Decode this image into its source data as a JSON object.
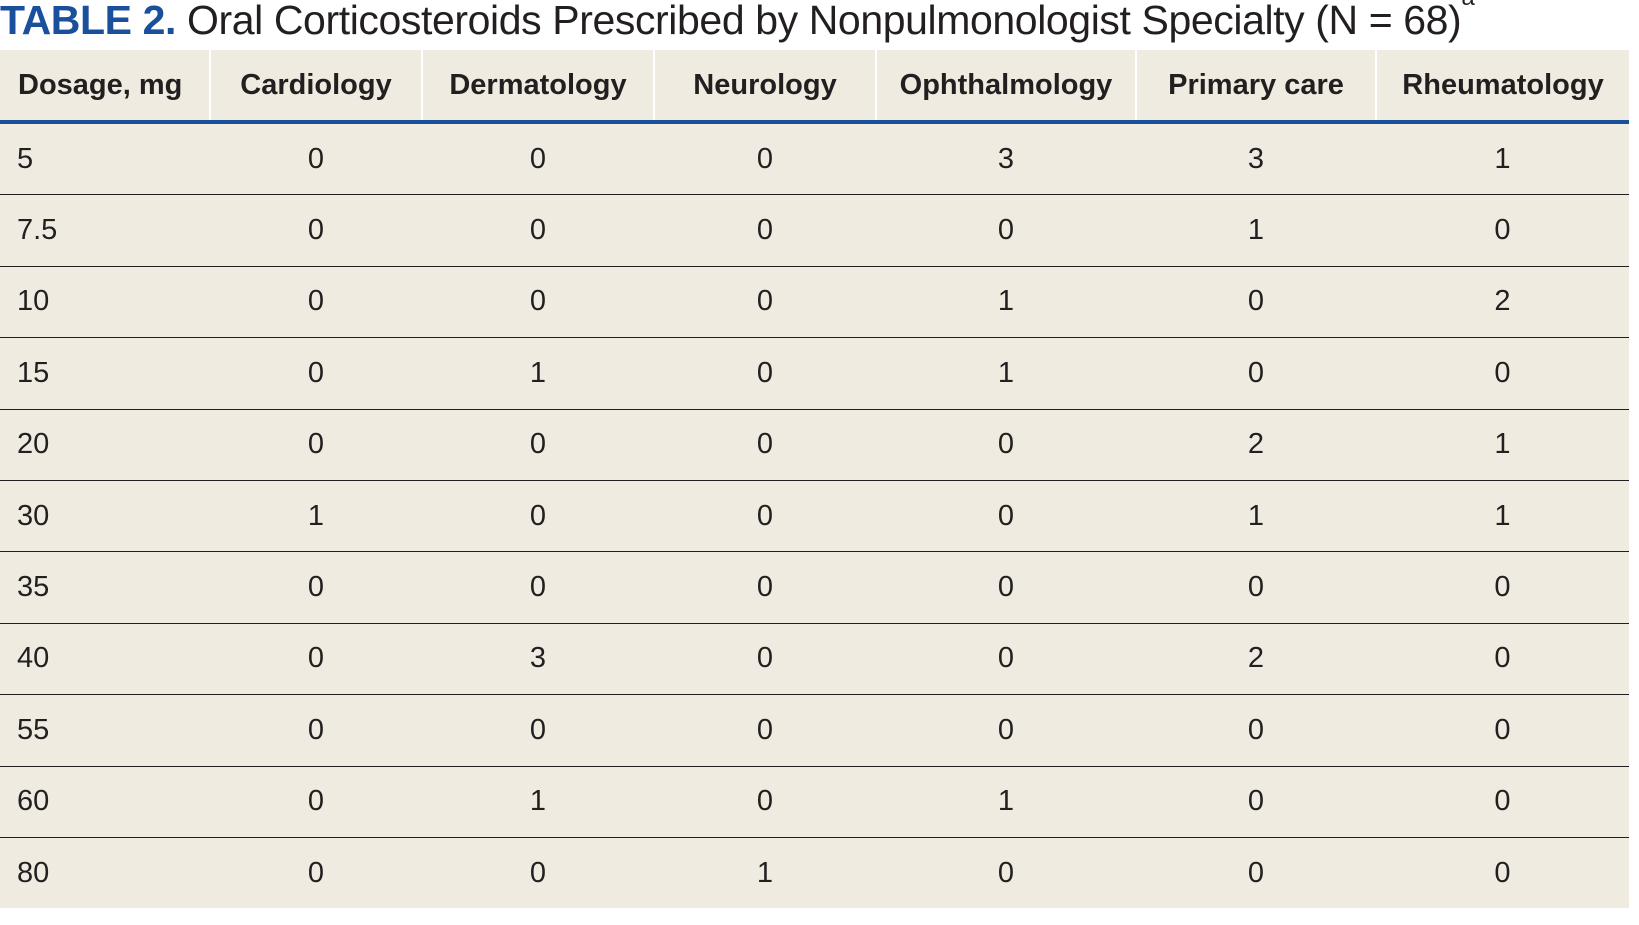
{
  "title": {
    "label": "TABLE 2.",
    "text": " Oral Corticosteroids Prescribed by Nonpulmonologist Specialty (N = 68)",
    "footnote_marker": "a"
  },
  "table": {
    "headers": [
      "Dosage, mg",
      "Cardiology",
      "Dermatology",
      "Neurology",
      "Ophthalmology",
      "Primary care",
      "Rheumatology"
    ],
    "rows": [
      [
        "5",
        "0",
        "0",
        "0",
        "3",
        "3",
        "1"
      ],
      [
        "7.5",
        "0",
        "0",
        "0",
        "0",
        "1",
        "0"
      ],
      [
        "10",
        "0",
        "0",
        "0",
        "1",
        "0",
        "2"
      ],
      [
        "15",
        "0",
        "1",
        "0",
        "1",
        "0",
        "0"
      ],
      [
        "20",
        "0",
        "0",
        "0",
        "0",
        "2",
        "1"
      ],
      [
        "30",
        "1",
        "0",
        "0",
        "0",
        "1",
        "1"
      ],
      [
        "35",
        "0",
        "0",
        "0",
        "0",
        "0",
        "0"
      ],
      [
        "40",
        "0",
        "3",
        "0",
        "0",
        "2",
        "0"
      ],
      [
        "55",
        "0",
        "0",
        "0",
        "0",
        "0",
        "0"
      ],
      [
        "60",
        "0",
        "1",
        "0",
        "1",
        "0",
        "0"
      ],
      [
        "80",
        "0",
        "0",
        "1",
        "0",
        "0",
        "0"
      ]
    ]
  },
  "colors": {
    "accent": "#1a4f9c",
    "table_background": "#efebe1",
    "text": "#231f20"
  }
}
